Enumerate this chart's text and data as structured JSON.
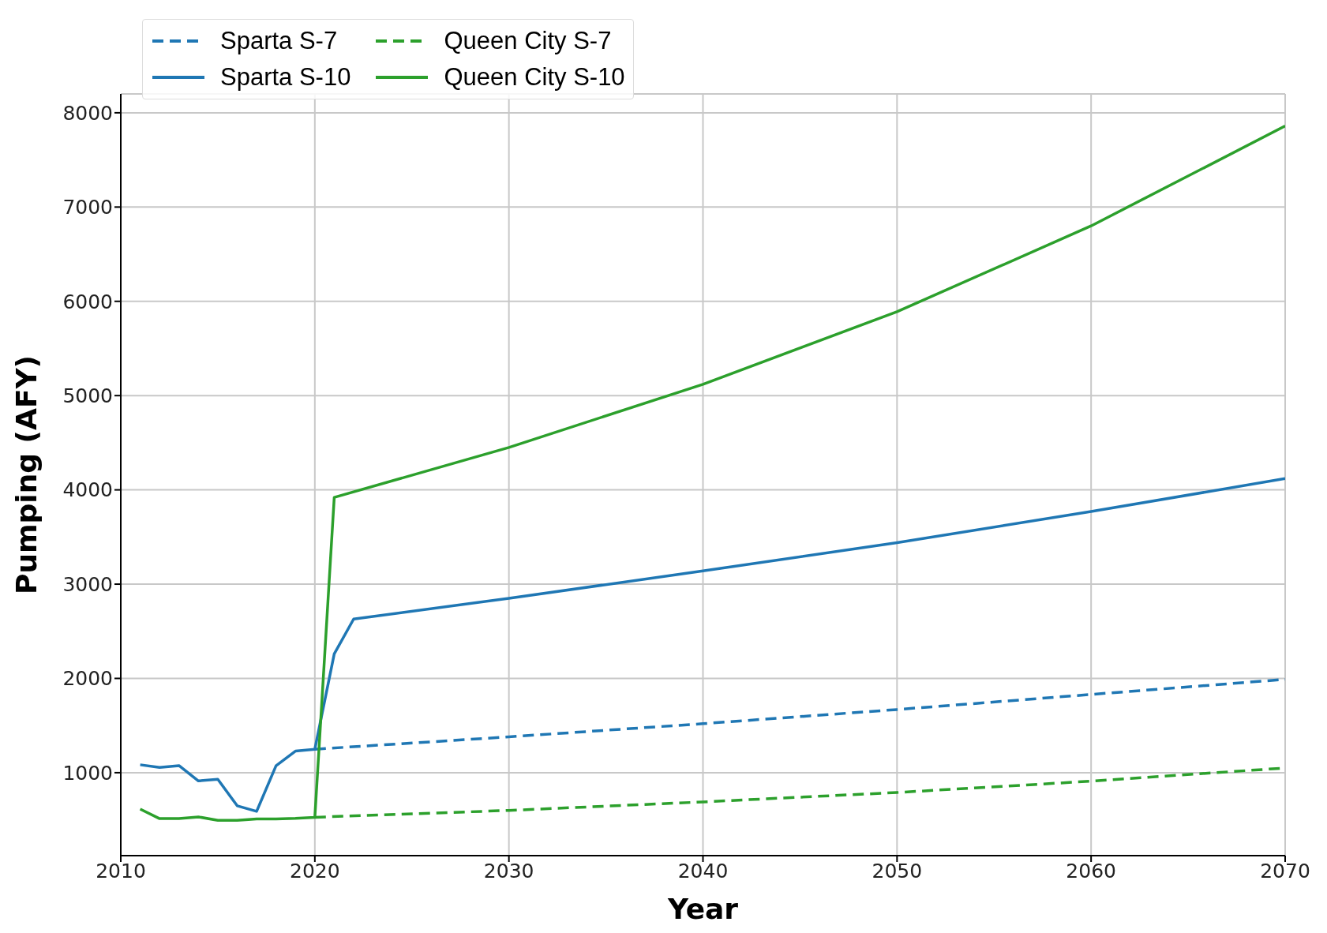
{
  "chart_data": {
    "type": "line",
    "xlabel": "Year",
    "ylabel": "Pumping (AFY)",
    "xlim": [
      2010,
      2070
    ],
    "xticks": [
      2010,
      2020,
      2030,
      2040,
      2050,
      2060,
      2070
    ],
    "ylim": [
      120,
      8200
    ],
    "yticks": [
      1000,
      2000,
      3000,
      4000,
      5000,
      6000,
      7000,
      8000
    ],
    "grid": true,
    "legend": "top left",
    "marker": "none",
    "series": [
      {
        "name": "Sparta S-7",
        "color": "#1f77b4",
        "line_style": "dashed",
        "x": [
          2020,
          2030,
          2040,
          2050,
          2060,
          2070
        ],
        "values": [
          1249,
          1380,
          1520,
          1670,
          1830,
          1990
        ]
      },
      {
        "name": "Sparta S-10",
        "color": "#1f77b4",
        "line_style": "solid",
        "x": [
          2011,
          2012,
          2013,
          2014,
          2015,
          2016,
          2017,
          2018,
          2019,
          2020,
          2021,
          2022,
          2030,
          2040,
          2050,
          2060,
          2070
        ],
        "values": [
          1084,
          1055,
          1075,
          913,
          930,
          649,
          590,
          1073,
          1229,
          1249,
          2260,
          2630,
          2850,
          3140,
          3440,
          3770,
          4120
        ]
      },
      {
        "name": "Queen City S-7",
        "color": "#2ca02c",
        "line_style": "dashed",
        "x": [
          2020,
          2030,
          2040,
          2050,
          2060,
          2070
        ],
        "values": [
          527,
          600,
          690,
          790,
          910,
          1050
        ]
      },
      {
        "name": "Queen City S-10",
        "color": "#2ca02c",
        "line_style": "solid",
        "x": [
          2011,
          2012,
          2013,
          2014,
          2015,
          2016,
          2017,
          2018,
          2019,
          2020,
          2021,
          2030,
          2040,
          2050,
          2060,
          2070
        ],
        "values": [
          614,
          513,
          513,
          531,
          495,
          495,
          510,
          510,
          515,
          527,
          3920,
          4450,
          5120,
          5890,
          6800,
          7860
        ]
      }
    ]
  }
}
